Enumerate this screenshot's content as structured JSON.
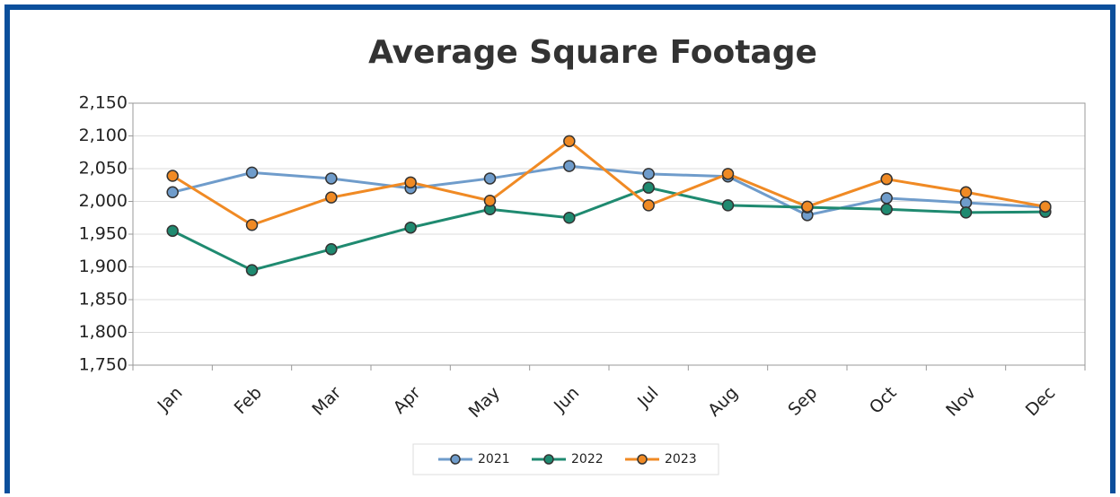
{
  "chart_data": {
    "type": "line",
    "title": "Average Square Footage",
    "categories": [
      "Jan",
      "Feb",
      "Mar",
      "Apr",
      "May",
      "Jun",
      "Jul",
      "Aug",
      "Sep",
      "Oct",
      "Nov",
      "Dec"
    ],
    "series": [
      {
        "name": "2021",
        "color": "#6f9ccb",
        "values": [
          2014,
          2044,
          2035,
          2020,
          2035,
          2054,
          2042,
          2038,
          1979,
          2005,
          1998,
          1991
        ]
      },
      {
        "name": "2022",
        "color": "#1f8a70",
        "values": [
          1955,
          1895,
          1927,
          1960,
          1988,
          1975,
          2021,
          1994,
          1991,
          1988,
          1983,
          1984
        ]
      },
      {
        "name": "2023",
        "color": "#f08a24",
        "values": [
          2039,
          1964,
          2006,
          2029,
          2001,
          2092,
          1994,
          2042,
          1992,
          2034,
          2014,
          1992
        ]
      }
    ],
    "ylim": [
      1750,
      2150
    ],
    "yticks": [
      {
        "value": 1750,
        "label": "1,750"
      },
      {
        "value": 1800,
        "label": "1,800"
      },
      {
        "value": 1850,
        "label": "1,850"
      },
      {
        "value": 1900,
        "label": "1,900"
      },
      {
        "value": 1950,
        "label": "1,950"
      },
      {
        "value": 2000,
        "label": "2,000"
      },
      {
        "value": 2050,
        "label": "2,050"
      },
      {
        "value": 2100,
        "label": "2,100"
      },
      {
        "value": 2150,
        "label": "2,150"
      }
    ],
    "grid": true,
    "legend": "bottom"
  }
}
